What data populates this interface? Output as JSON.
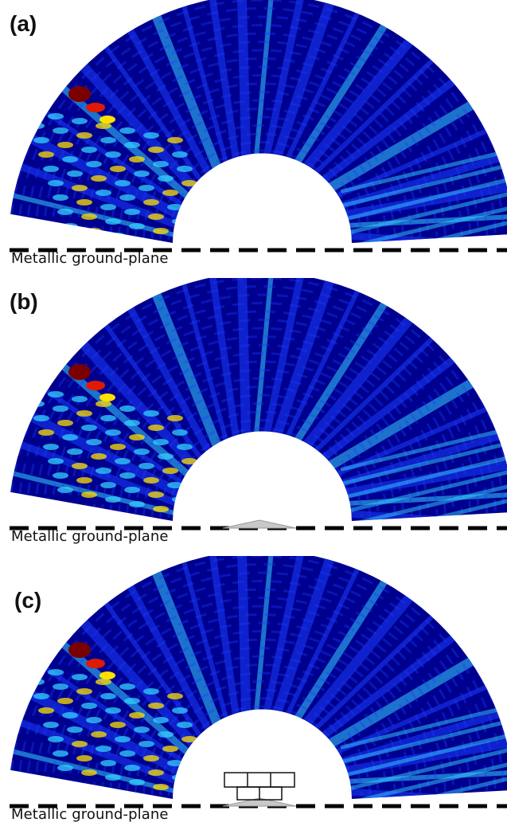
{
  "panels": [
    {
      "id": "a",
      "label": "(a)",
      "ground_label": "Metallic ground-plane",
      "scatterer": "none"
    },
    {
      "id": "b",
      "label": "(b)",
      "ground_label": "Metallic ground-plane",
      "scatterer": "triangle"
    },
    {
      "id": "c",
      "label": "(c)",
      "ground_label": "Metallic ground-plane",
      "scatterer": "grid-and-triangle"
    }
  ],
  "colors": {
    "background": "#0a10a8",
    "dark_blue": "#00008f",
    "blue": "#1a3cff",
    "cyan": "#33d0ff",
    "yellow": "#ffe000",
    "red": "#e01a00",
    "dark_red": "#7a0000",
    "ground_line": "#000000"
  }
}
